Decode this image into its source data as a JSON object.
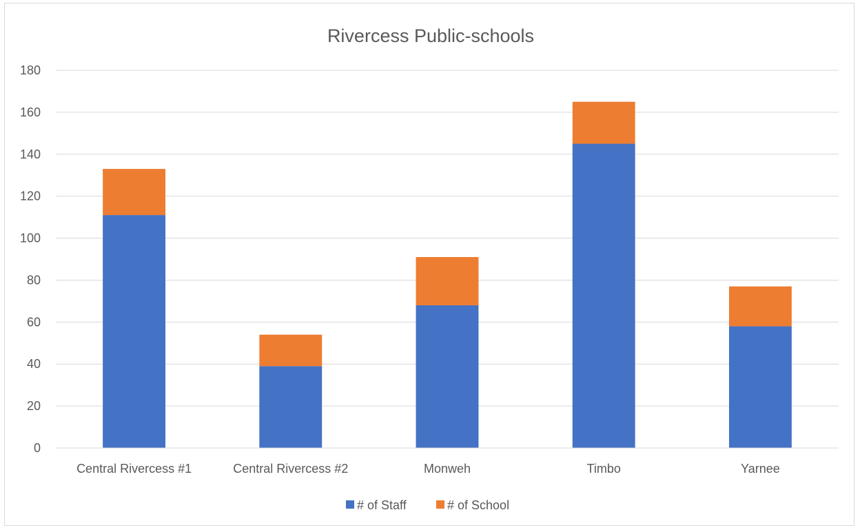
{
  "chart_data": {
    "type": "bar",
    "stacked": true,
    "title": "Rivercess Public-schools",
    "xlabel": "",
    "ylabel": "",
    "categories": [
      "Central Rivercess #1",
      "Central Rivercess #2",
      "Monweh",
      "Timbo",
      "Yarnee"
    ],
    "series": [
      {
        "name": "# of Staff",
        "color": "#4472c4",
        "values": [
          111,
          39,
          68,
          145,
          58
        ]
      },
      {
        "name": "# of School",
        "color": "#ed7d31",
        "values": [
          22,
          15,
          23,
          20,
          19
        ]
      }
    ],
    "ylim": [
      0,
      180
    ],
    "yticks": [
      0,
      20,
      40,
      60,
      80,
      100,
      120,
      140,
      160,
      180
    ],
    "grid": true,
    "legend": "bottom"
  }
}
